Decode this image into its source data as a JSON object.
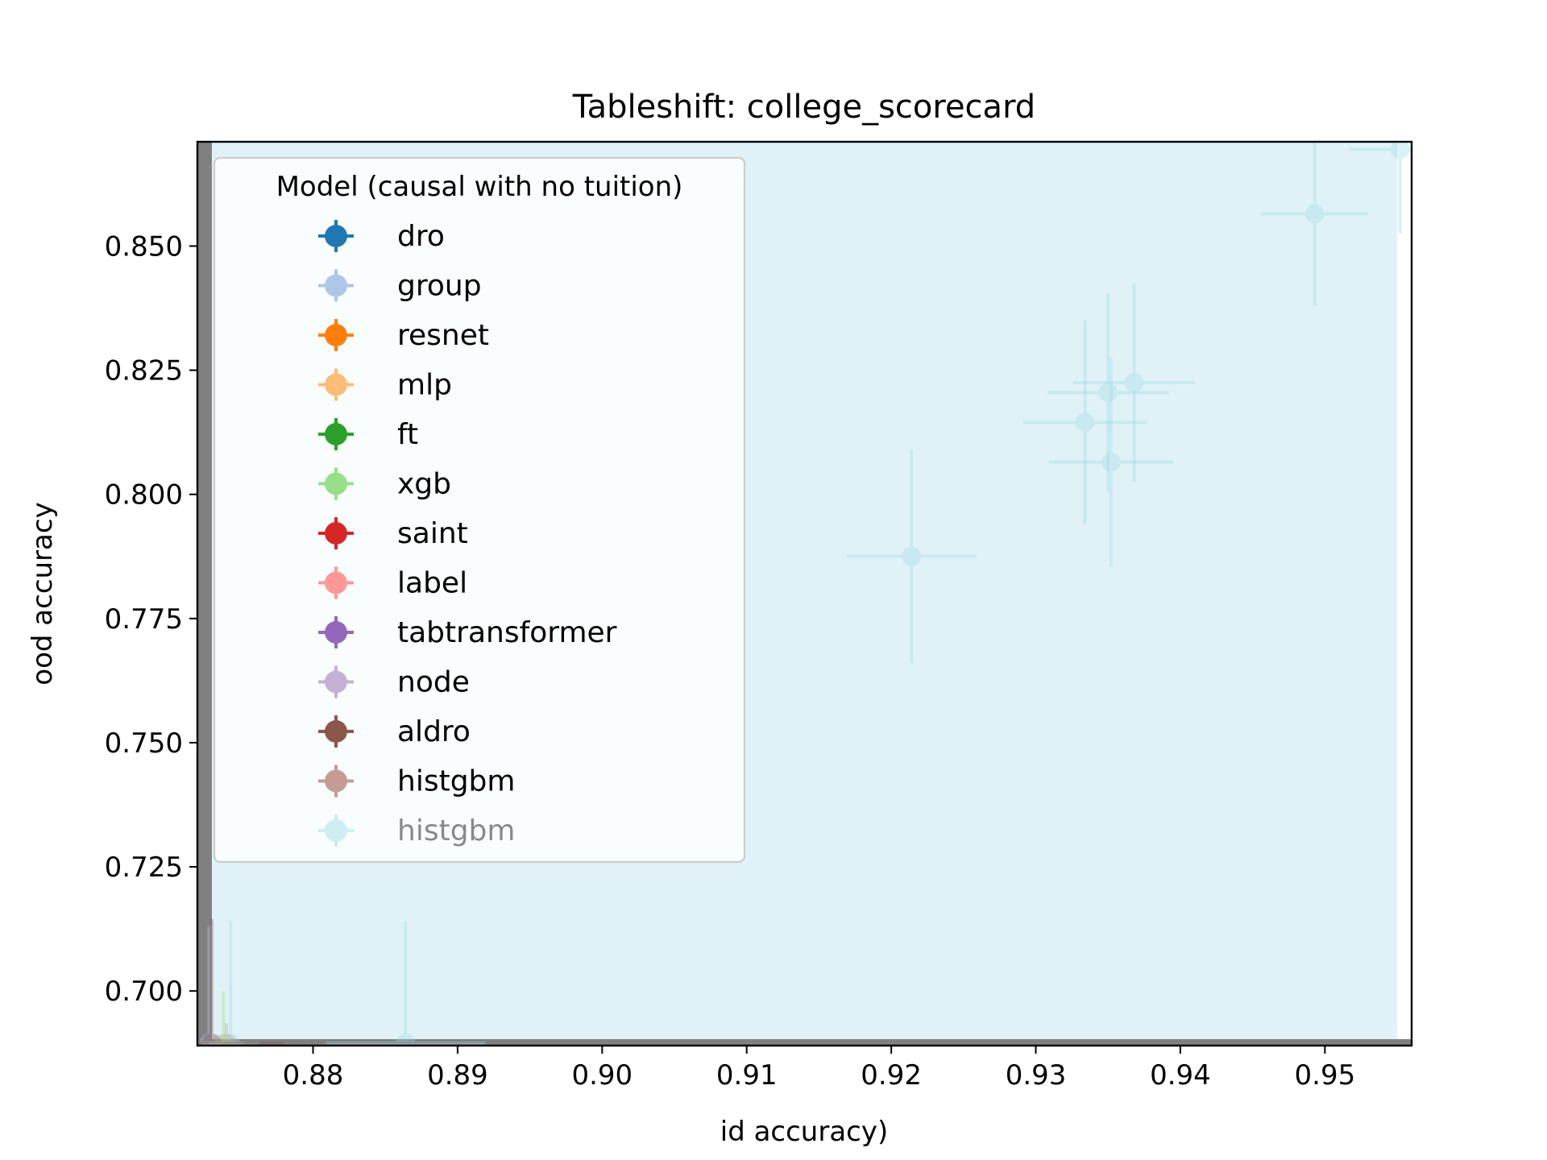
{
  "chart_data": {
    "type": "scatter",
    "title": "Tableshift: college_scorecard",
    "xlabel": "id accuracy)",
    "ylabel": "ood accuracy",
    "xlim": [
      0.872,
      0.956
    ],
    "ylim": [
      0.689,
      0.871
    ],
    "xticks": [
      0.88,
      0.89,
      0.9,
      0.91,
      0.92,
      0.93,
      0.94,
      0.95
    ],
    "xtick_labels": [
      "0.88",
      "0.89",
      "0.90",
      "0.91",
      "0.92",
      "0.93",
      "0.94",
      "0.95"
    ],
    "yticks": [
      0.7,
      0.725,
      0.75,
      0.775,
      0.8,
      0.825,
      0.85
    ],
    "ytick_labels": [
      "0.700",
      "0.725",
      "0.750",
      "0.775",
      "0.800",
      "0.825",
      "0.850"
    ],
    "grid": false,
    "background_region": {
      "color": "#e0f2f7",
      "x": [
        0.873,
        0.955
      ],
      "y": [
        0.689,
        0.871
      ]
    },
    "baseline_color": "#808080",
    "legend": {
      "title": "Model (causal with no tuition)",
      "placement": "upper-left",
      "entries": [
        {
          "label": "dro",
          "color": "#1f77b4",
          "alpha": 1.0
        },
        {
          "label": "group",
          "color": "#aec7e8",
          "alpha": 1.0
        },
        {
          "label": "resnet",
          "color": "#ff7f0e",
          "alpha": 1.0
        },
        {
          "label": "mlp",
          "color": "#ffbb78",
          "alpha": 1.0
        },
        {
          "label": "ft",
          "color": "#2ca02c",
          "alpha": 1.0
        },
        {
          "label": "xgb",
          "color": "#98df8a",
          "alpha": 1.0
        },
        {
          "label": "saint",
          "color": "#d62728",
          "alpha": 1.0
        },
        {
          "label": "label",
          "color": "#ff9896",
          "alpha": 1.0
        },
        {
          "label": "tabtransformer",
          "color": "#9467bd",
          "alpha": 1.0
        },
        {
          "label": "node",
          "color": "#c5b0d5",
          "alpha": 1.0
        },
        {
          "label": "aldro",
          "color": "#8c564b",
          "alpha": 1.0
        },
        {
          "label": "histgbm",
          "color": "#c49c94",
          "alpha": 1.0
        },
        {
          "label": "histgbm",
          "color": "#9edae5",
          "alpha": 0.45
        }
      ]
    },
    "points": [
      {
        "color": "#9edae5",
        "x": 0.9214,
        "y": 0.7875,
        "xerr": 0.0045,
        "yerr": 0.0215
      },
      {
        "color": "#9edae5",
        "x": 0.9334,
        "y": 0.8145,
        "xerr": 0.0043,
        "yerr": 0.0205
      },
      {
        "color": "#9edae5",
        "x": 0.935,
        "y": 0.8205,
        "xerr": 0.0042,
        "yerr": 0.02
      },
      {
        "color": "#9edae5",
        "x": 0.9368,
        "y": 0.8225,
        "xerr": 0.0042,
        "yerr": 0.02
      },
      {
        "color": "#9edae5",
        "x": 0.9352,
        "y": 0.8065,
        "xerr": 0.0043,
        "yerr": 0.021
      },
      {
        "color": "#9edae5",
        "x": 0.9493,
        "y": 0.8565,
        "xerr": 0.0037,
        "yerr": 0.0185
      },
      {
        "color": "#9edae5",
        "x": 0.9552,
        "y": 0.8695,
        "xerr": 0.0035,
        "yerr": 0.017
      },
      {
        "color": "#9edae5",
        "x": 0.8864,
        "y": 0.6895,
        "xerr": 0.0055,
        "yerr": 0.0245
      },
      {
        "color": "#9edae5",
        "x": 0.8743,
        "y": 0.6895,
        "xerr": 0.002,
        "yerr": 0.0245
      },
      {
        "color": "#98df8a",
        "x": 0.8738,
        "y": 0.6895,
        "xerr": 0.001,
        "yerr": 0.0105
      },
      {
        "color": "#aec7e8",
        "x": 0.8728,
        "y": 0.6895,
        "xerr": 0.0008,
        "yerr": 0.0235
      },
      {
        "color": "#8c564b",
        "x": 0.873,
        "y": 0.6895,
        "xerr": 0.005,
        "yerr": 0.025
      },
      {
        "color": "#c49c94",
        "x": 0.874,
        "y": 0.6895,
        "xerr": 0.0012,
        "yerr": 0.004
      }
    ]
  }
}
